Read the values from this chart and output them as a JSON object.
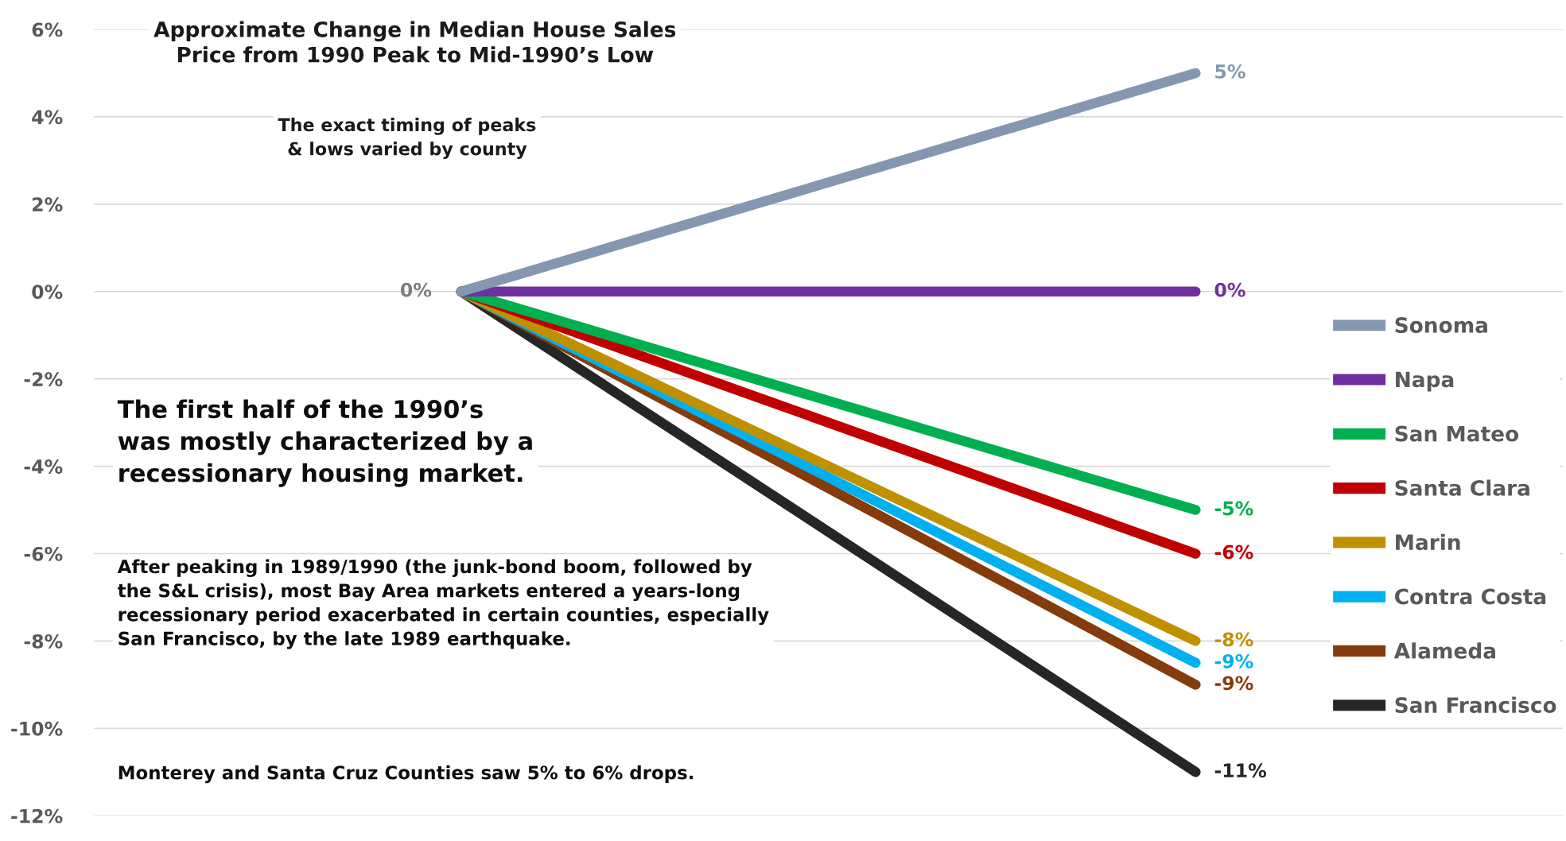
{
  "chart_data": {
    "type": "line",
    "title": "Approximate Change in Median House Sales\nPrice from 1990 Peak to Mid-1990’s Low",
    "subtitle": "The exact timing of peaks\n& lows varied by county",
    "categories": [
      null,
      null
    ],
    "series": [
      {
        "name": "Sonoma",
        "color": "#8497b0",
        "values": [
          0,
          5
        ],
        "value_labels": [
          "0%",
          "5%"
        ]
      },
      {
        "name": "Napa",
        "color": "#7030a0",
        "values": [
          0,
          0
        ],
        "value_labels": [
          null,
          "0%"
        ]
      },
      {
        "name": "San Mateo",
        "color": "#00b050",
        "values": [
          0,
          -5
        ],
        "value_labels": [
          null,
          "-5%"
        ]
      },
      {
        "name": "Santa Clara",
        "color": "#c00000",
        "values": [
          0,
          -6
        ],
        "value_labels": [
          null,
          "-6%"
        ]
      },
      {
        "name": "Marin",
        "color": "#bf9000",
        "values": [
          0,
          -8
        ],
        "value_labels": [
          null,
          "-8%"
        ]
      },
      {
        "name": "Contra Costa",
        "color": "#00b0f0",
        "values": [
          0,
          -8.5
        ],
        "value_labels": [
          null,
          "-9%"
        ]
      },
      {
        "name": "Alameda",
        "color": "#843c0c",
        "values": [
          0,
          -9
        ],
        "value_labels": [
          null,
          "-9%"
        ]
      },
      {
        "name": "San Francisco",
        "color": "#262626",
        "values": [
          0,
          -11
        ],
        "value_labels": [
          null,
          "-11%"
        ]
      }
    ],
    "ylim": [
      -12,
      6
    ],
    "yticks": [
      {
        "value": -12,
        "label": "-12%"
      },
      {
        "value": -10,
        "label": "-10%"
      },
      {
        "value": -8,
        "label": "-8%"
      },
      {
        "value": -6,
        "label": "-6%"
      },
      {
        "value": -4,
        "label": "-4%"
      },
      {
        "value": -2,
        "label": "-2%"
      },
      {
        "value": 0,
        "label": "0%"
      },
      {
        "value": 2,
        "label": "2%"
      },
      {
        "value": 4,
        "label": "4%"
      },
      {
        "value": 6,
        "label": "6%"
      }
    ],
    "grid": "y",
    "legend": "right",
    "marker": "none",
    "line_style": "solid",
    "annotations": [
      "The first half of the 1990’s was mostly characterized by a recessionary housing market.",
      "After peaking in 1989/1990 (the junk-bond boom, followed by the S&L crisis), most Bay Area markets entered a years-long recessionary period exacerbated in certain counties, especially San Francisco, by the late 1989 earthquake.",
      "Monterey and Santa Cruz Counties saw 5% to 6% drops."
    ]
  }
}
